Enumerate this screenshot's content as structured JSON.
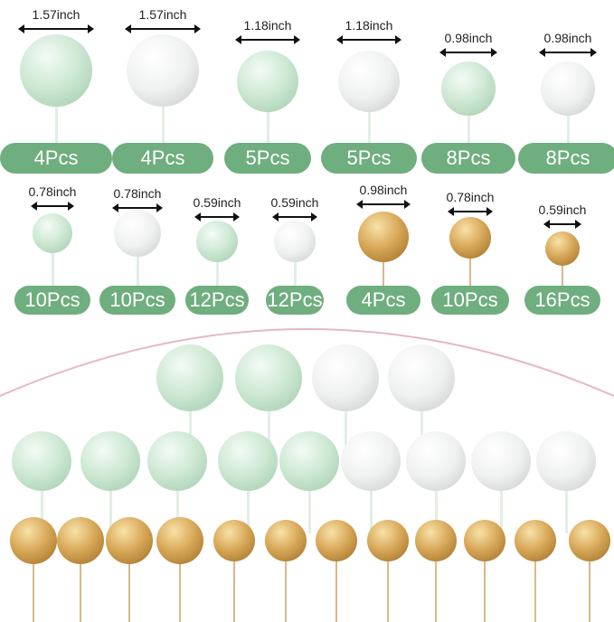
{
  "colors": {
    "label_bg": "#6fae7e",
    "arc": "#e7b7c4"
  },
  "row1": [
    {
      "size": "1.57inch",
      "count": "4Pcs",
      "color": "mint"
    },
    {
      "size": "1.57inch",
      "count": "4Pcs",
      "color": "white"
    },
    {
      "size": "1.18inch",
      "count": "5Pcs",
      "color": "mint"
    },
    {
      "size": "1.18inch",
      "count": "5Pcs",
      "color": "white"
    },
    {
      "size": "0.98inch",
      "count": "8Pcs",
      "color": "mint"
    },
    {
      "size": "0.98inch",
      "count": "8Pcs",
      "color": "white"
    }
  ],
  "row2": [
    {
      "size": "0.78inch",
      "count": "10Pcs",
      "color": "mint"
    },
    {
      "size": "0.78inch",
      "count": "10Pcs",
      "color": "white"
    },
    {
      "size": "0.59inch",
      "count": "12Pcs",
      "color": "mint"
    },
    {
      "size": "0.59inch",
      "count": "12Pcs",
      "color": "white"
    },
    {
      "size": "0.98inch",
      "count": "4Pcs",
      "color": "gold"
    },
    {
      "size": "0.78inch",
      "count": "10Pcs",
      "color": "gold"
    },
    {
      "size": "0.59inch",
      "count": "16Pcs",
      "color": "gold"
    }
  ]
}
